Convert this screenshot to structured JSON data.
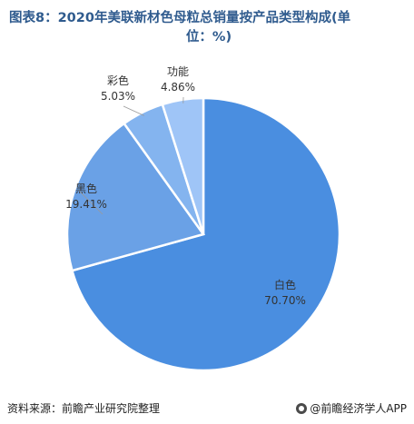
{
  "header": {
    "title_line1": "图表8：2020年美联新材色母粒总销量按产品类型构成(单",
    "title_line2": "位：%)"
  },
  "chart_data": {
    "type": "pie",
    "title": "图表8：2020年美联新材色母粒总销量按产品类型构成(单位：%)",
    "categories": [
      "白色",
      "黑色",
      "彩色",
      "功能"
    ],
    "values": [
      70.7,
      19.41,
      5.03,
      4.86
    ],
    "value_labels": [
      "70.70%",
      "19.41%",
      "5.03%",
      "4.86%"
    ],
    "colors": [
      "#4a8ee0",
      "#6aa1e6",
      "#84b4ef",
      "#9fc5f7"
    ],
    "legend": "none"
  },
  "footer": {
    "source": "资料来源：前瞻产业研究院整理",
    "brand": "@前瞻经济学人APP"
  }
}
